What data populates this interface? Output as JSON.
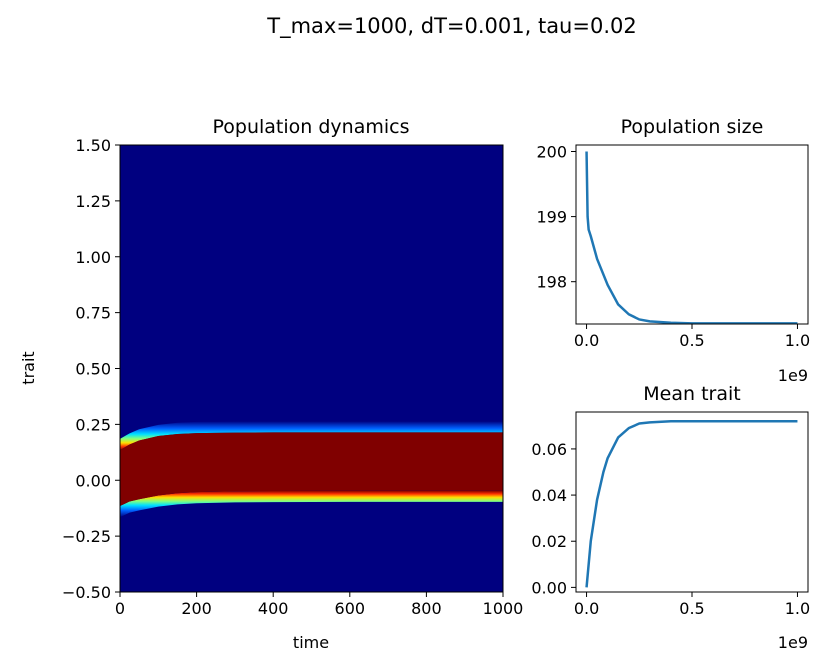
{
  "suptitle": "T_max=1000, dT=0.001, tau=0.02",
  "chart_data": [
    {
      "type": "heatmap",
      "title": "Population dynamics",
      "xlabel": "time",
      "ylabel": "trait",
      "xlim": [
        0,
        1000
      ],
      "ylim": [
        -0.5,
        1.5
      ],
      "xticks": [
        "0",
        "200",
        "400",
        "600",
        "800",
        "1000"
      ],
      "yticks": [
        "−0.50",
        "−0.25",
        "0.00",
        "0.25",
        "0.50",
        "0.75",
        "1.00",
        "1.25",
        "1.50"
      ],
      "colormap": "jet",
      "band": {
        "time": [
          0,
          25,
          50,
          100,
          150,
          200,
          300,
          400,
          600,
          800,
          1000
        ],
        "lower_edge": [
          -0.115,
          -0.095,
          -0.085,
          -0.068,
          -0.058,
          -0.053,
          -0.049,
          -0.048,
          -0.047,
          -0.047,
          -0.047
        ],
        "upper_edge": [
          0.135,
          0.16,
          0.178,
          0.198,
          0.207,
          0.211,
          0.213,
          0.214,
          0.214,
          0.214,
          0.214
        ],
        "halo_width": 0.05
      }
    },
    {
      "type": "line",
      "title": "Population size",
      "xlim": [
        -0.05,
        1.05
      ],
      "ylim": [
        197.35,
        200.1
      ],
      "xticks": [
        "0.0",
        "0.5",
        "1.0"
      ],
      "x_offset_label": "1e9",
      "yticks": [
        "198",
        "199",
        "200"
      ],
      "color": "#1f77b4",
      "x": [
        0,
        0.005,
        0.01,
        0.02,
        0.05,
        0.1,
        0.15,
        0.2,
        0.25,
        0.3,
        0.4,
        0.5,
        0.7,
        1.0
      ],
      "y": [
        200.0,
        199.0,
        198.8,
        198.7,
        198.35,
        197.95,
        197.65,
        197.5,
        197.42,
        197.39,
        197.37,
        197.36,
        197.36,
        197.36
      ]
    },
    {
      "type": "line",
      "title": "Mean trait",
      "xlim": [
        -0.05,
        1.05
      ],
      "ylim": [
        -0.002,
        0.076
      ],
      "xticks": [
        "0.0",
        "0.5",
        "1.0"
      ],
      "x_offset_label": "1e9",
      "yticks": [
        "0.00",
        "0.02",
        "0.04",
        "0.06"
      ],
      "color": "#1f77b4",
      "x": [
        0,
        0.02,
        0.05,
        0.08,
        0.1,
        0.15,
        0.2,
        0.25,
        0.3,
        0.4,
        0.5,
        0.7,
        1.0
      ],
      "y": [
        0,
        0.02,
        0.038,
        0.05,
        0.056,
        0.065,
        0.069,
        0.071,
        0.0715,
        0.072,
        0.072,
        0.072,
        0.072
      ]
    }
  ]
}
